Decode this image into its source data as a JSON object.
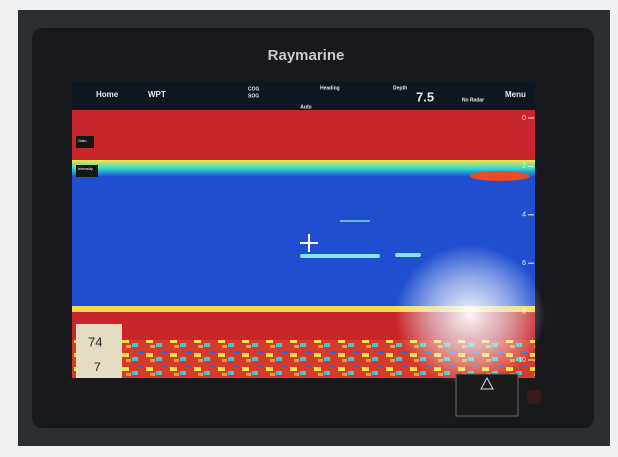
{
  "brand": "Raymarine",
  "toolbar": {
    "home": "Home",
    "wpt": "WPT",
    "cog": "COG",
    "sog": "SOG",
    "heading": "Heading",
    "depth_label": "Depth",
    "depth_value": "7.5",
    "radar": "No Radar",
    "menu": "Menu",
    "mode": "Auto"
  },
  "sonar": {
    "depth_scale": [
      "0",
      "2",
      "4",
      "6",
      "8",
      "10"
    ],
    "gain": "Gain",
    "intensity": "Intensity",
    "water_temp": "74",
    "speed": "7"
  }
}
